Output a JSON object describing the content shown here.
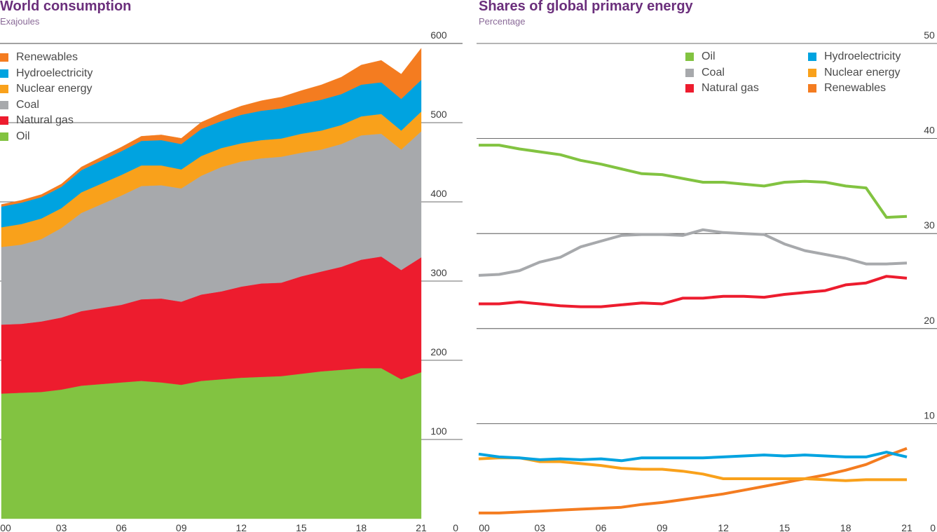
{
  "left": {
    "title": "World consumption",
    "subtitle": "Exajoules",
    "legend": [
      {
        "label": "Renewables",
        "color": "#f47c20"
      },
      {
        "label": "Hydroelectricity",
        "color": "#00a3e0"
      },
      {
        "label": "Nuclear energy",
        "color": "#f9a11b"
      },
      {
        "label": "Coal",
        "color": "#a7a9ac"
      },
      {
        "label": "Natural gas",
        "color": "#ed1c2e"
      },
      {
        "label": "Oil",
        "color": "#82c341"
      }
    ]
  },
  "right": {
    "title": "Shares of global primary energy",
    "subtitle": "Percentage",
    "legend": [
      {
        "label": "Oil",
        "color": "#82c341"
      },
      {
        "label": "Coal",
        "color": "#a7a9ac"
      },
      {
        "label": "Natural gas",
        "color": "#ed1c2e"
      },
      {
        "label": "Hydroelectricity",
        "color": "#00a3e0"
      },
      {
        "label": "Nuclear energy",
        "color": "#f9a11b"
      },
      {
        "label": "Renewables",
        "color": "#f47c20"
      }
    ]
  },
  "chart_data": [
    {
      "type": "area",
      "stacked": true,
      "title": "World consumption",
      "ylabel": "Exajoules",
      "x": [
        "00",
        "01",
        "02",
        "03",
        "04",
        "05",
        "06",
        "07",
        "08",
        "09",
        "10",
        "11",
        "12",
        "13",
        "14",
        "15",
        "16",
        "17",
        "18",
        "19",
        "20",
        "21"
      ],
      "x_tick_labels": [
        "00",
        "03",
        "06",
        "09",
        "12",
        "15",
        "18",
        "21"
      ],
      "y_tick_labels": [
        "0",
        "100",
        "200",
        "300",
        "400",
        "500",
        "600"
      ],
      "ylim": [
        0,
        600
      ],
      "grid": "horizontal",
      "legend_position": "top-left",
      "series": [
        {
          "name": "Oil",
          "color": "#82c341",
          "values": [
            158,
            159,
            160,
            163,
            168,
            170,
            172,
            174,
            172,
            169,
            174,
            176,
            178,
            179,
            180,
            183,
            186,
            188,
            190,
            190,
            176,
            185
          ]
        },
        {
          "name": "Natural gas",
          "color": "#ed1c2e",
          "values": [
            87,
            87,
            89,
            91,
            94,
            96,
            98,
            103,
            106,
            105,
            109,
            111,
            115,
            118,
            118,
            123,
            126,
            130,
            137,
            141,
            138,
            145
          ]
        },
        {
          "name": "Coal",
          "color": "#a7a9ac",
          "values": [
            98,
            100,
            104,
            113,
            124,
            131,
            138,
            143,
            143,
            143,
            150,
            157,
            158,
            158,
            159,
            156,
            154,
            155,
            157,
            155,
            152,
            159
          ]
        },
        {
          "name": "Nuclear energy",
          "color": "#f9a11b",
          "values": [
            25,
            26,
            26,
            25,
            26,
            26,
            26,
            26,
            25,
            24,
            25,
            24,
            23,
            23,
            23,
            24,
            24,
            24,
            24,
            25,
            24,
            25
          ]
        },
        {
          "name": "Hydroelectricity",
          "color": "#00a3e0",
          "values": [
            26,
            27,
            27,
            27,
            28,
            29,
            30,
            31,
            32,
            32,
            34,
            34,
            36,
            37,
            38,
            38,
            39,
            39,
            40,
            40,
            40,
            40
          ]
        },
        {
          "name": "Renewables",
          "color": "#f47c20",
          "values": [
            2.8,
            3.0,
            3.3,
            3.6,
            4.1,
            4.6,
            5.1,
            5.8,
            6.6,
            7.3,
            8.5,
            9.6,
            11,
            12.7,
            14.3,
            16.4,
            18.7,
            21.4,
            24.7,
            27.7,
            31.3,
            39.9
          ]
        }
      ]
    },
    {
      "type": "line",
      "title": "Shares of global primary energy",
      "ylabel": "Percentage",
      "x": [
        "00",
        "01",
        "02",
        "03",
        "04",
        "05",
        "06",
        "07",
        "08",
        "09",
        "10",
        "11",
        "12",
        "13",
        "14",
        "15",
        "16",
        "17",
        "18",
        "19",
        "20",
        "21"
      ],
      "x_tick_labels": [
        "00",
        "03",
        "06",
        "09",
        "12",
        "15",
        "18",
        "21"
      ],
      "y_tick_labels": [
        "0",
        "10",
        "20",
        "30",
        "40",
        "50"
      ],
      "ylim": [
        0,
        50
      ],
      "grid": "horizontal",
      "legend_position": "top-right",
      "series": [
        {
          "name": "Oil",
          "color": "#82c341",
          "values": [
            39.3,
            39.3,
            38.9,
            38.6,
            38.3,
            37.7,
            37.3,
            36.8,
            36.3,
            36.2,
            35.8,
            35.4,
            35.4,
            35.2,
            35.0,
            35.4,
            35.5,
            35.4,
            35.0,
            34.8,
            31.7,
            31.8
          ]
        },
        {
          "name": "Coal",
          "color": "#a7a9ac",
          "values": [
            25.6,
            25.7,
            26.1,
            27.0,
            27.5,
            28.6,
            29.2,
            29.8,
            29.9,
            29.9,
            29.8,
            30.4,
            30.1,
            30.0,
            29.9,
            28.9,
            28.2,
            27.8,
            27.4,
            26.8,
            26.8,
            26.9
          ]
        },
        {
          "name": "Natural gas",
          "color": "#ed1c2e",
          "values": [
            22.6,
            22.6,
            22.8,
            22.6,
            22.4,
            22.3,
            22.3,
            22.5,
            22.7,
            22.6,
            23.2,
            23.2,
            23.4,
            23.4,
            23.3,
            23.6,
            23.8,
            24.0,
            24.6,
            24.8,
            25.5,
            25.3
          ]
        },
        {
          "name": "Hydroelectricity",
          "color": "#00a3e0",
          "values": [
            6.8,
            6.5,
            6.4,
            6.2,
            6.3,
            6.2,
            6.3,
            6.1,
            6.4,
            6.4,
            6.4,
            6.4,
            6.5,
            6.6,
            6.7,
            6.6,
            6.7,
            6.6,
            6.5,
            6.5,
            7.0,
            6.5
          ]
        },
        {
          "name": "Nuclear energy",
          "color": "#f9a11b",
          "values": [
            6.3,
            6.4,
            6.4,
            6.0,
            6.0,
            5.8,
            5.6,
            5.3,
            5.2,
            5.2,
            5.0,
            4.7,
            4.2,
            4.2,
            4.2,
            4.2,
            4.2,
            4.1,
            4.0,
            4.1,
            4.1,
            4.1
          ]
        },
        {
          "name": "Renewables",
          "color": "#f47c20",
          "values": [
            0.6,
            0.6,
            0.7,
            0.8,
            0.9,
            1.0,
            1.1,
            1.2,
            1.5,
            1.7,
            2.0,
            2.3,
            2.6,
            3.0,
            3.4,
            3.8,
            4.2,
            4.6,
            5.1,
            5.7,
            6.6,
            7.4
          ]
        }
      ]
    }
  ]
}
